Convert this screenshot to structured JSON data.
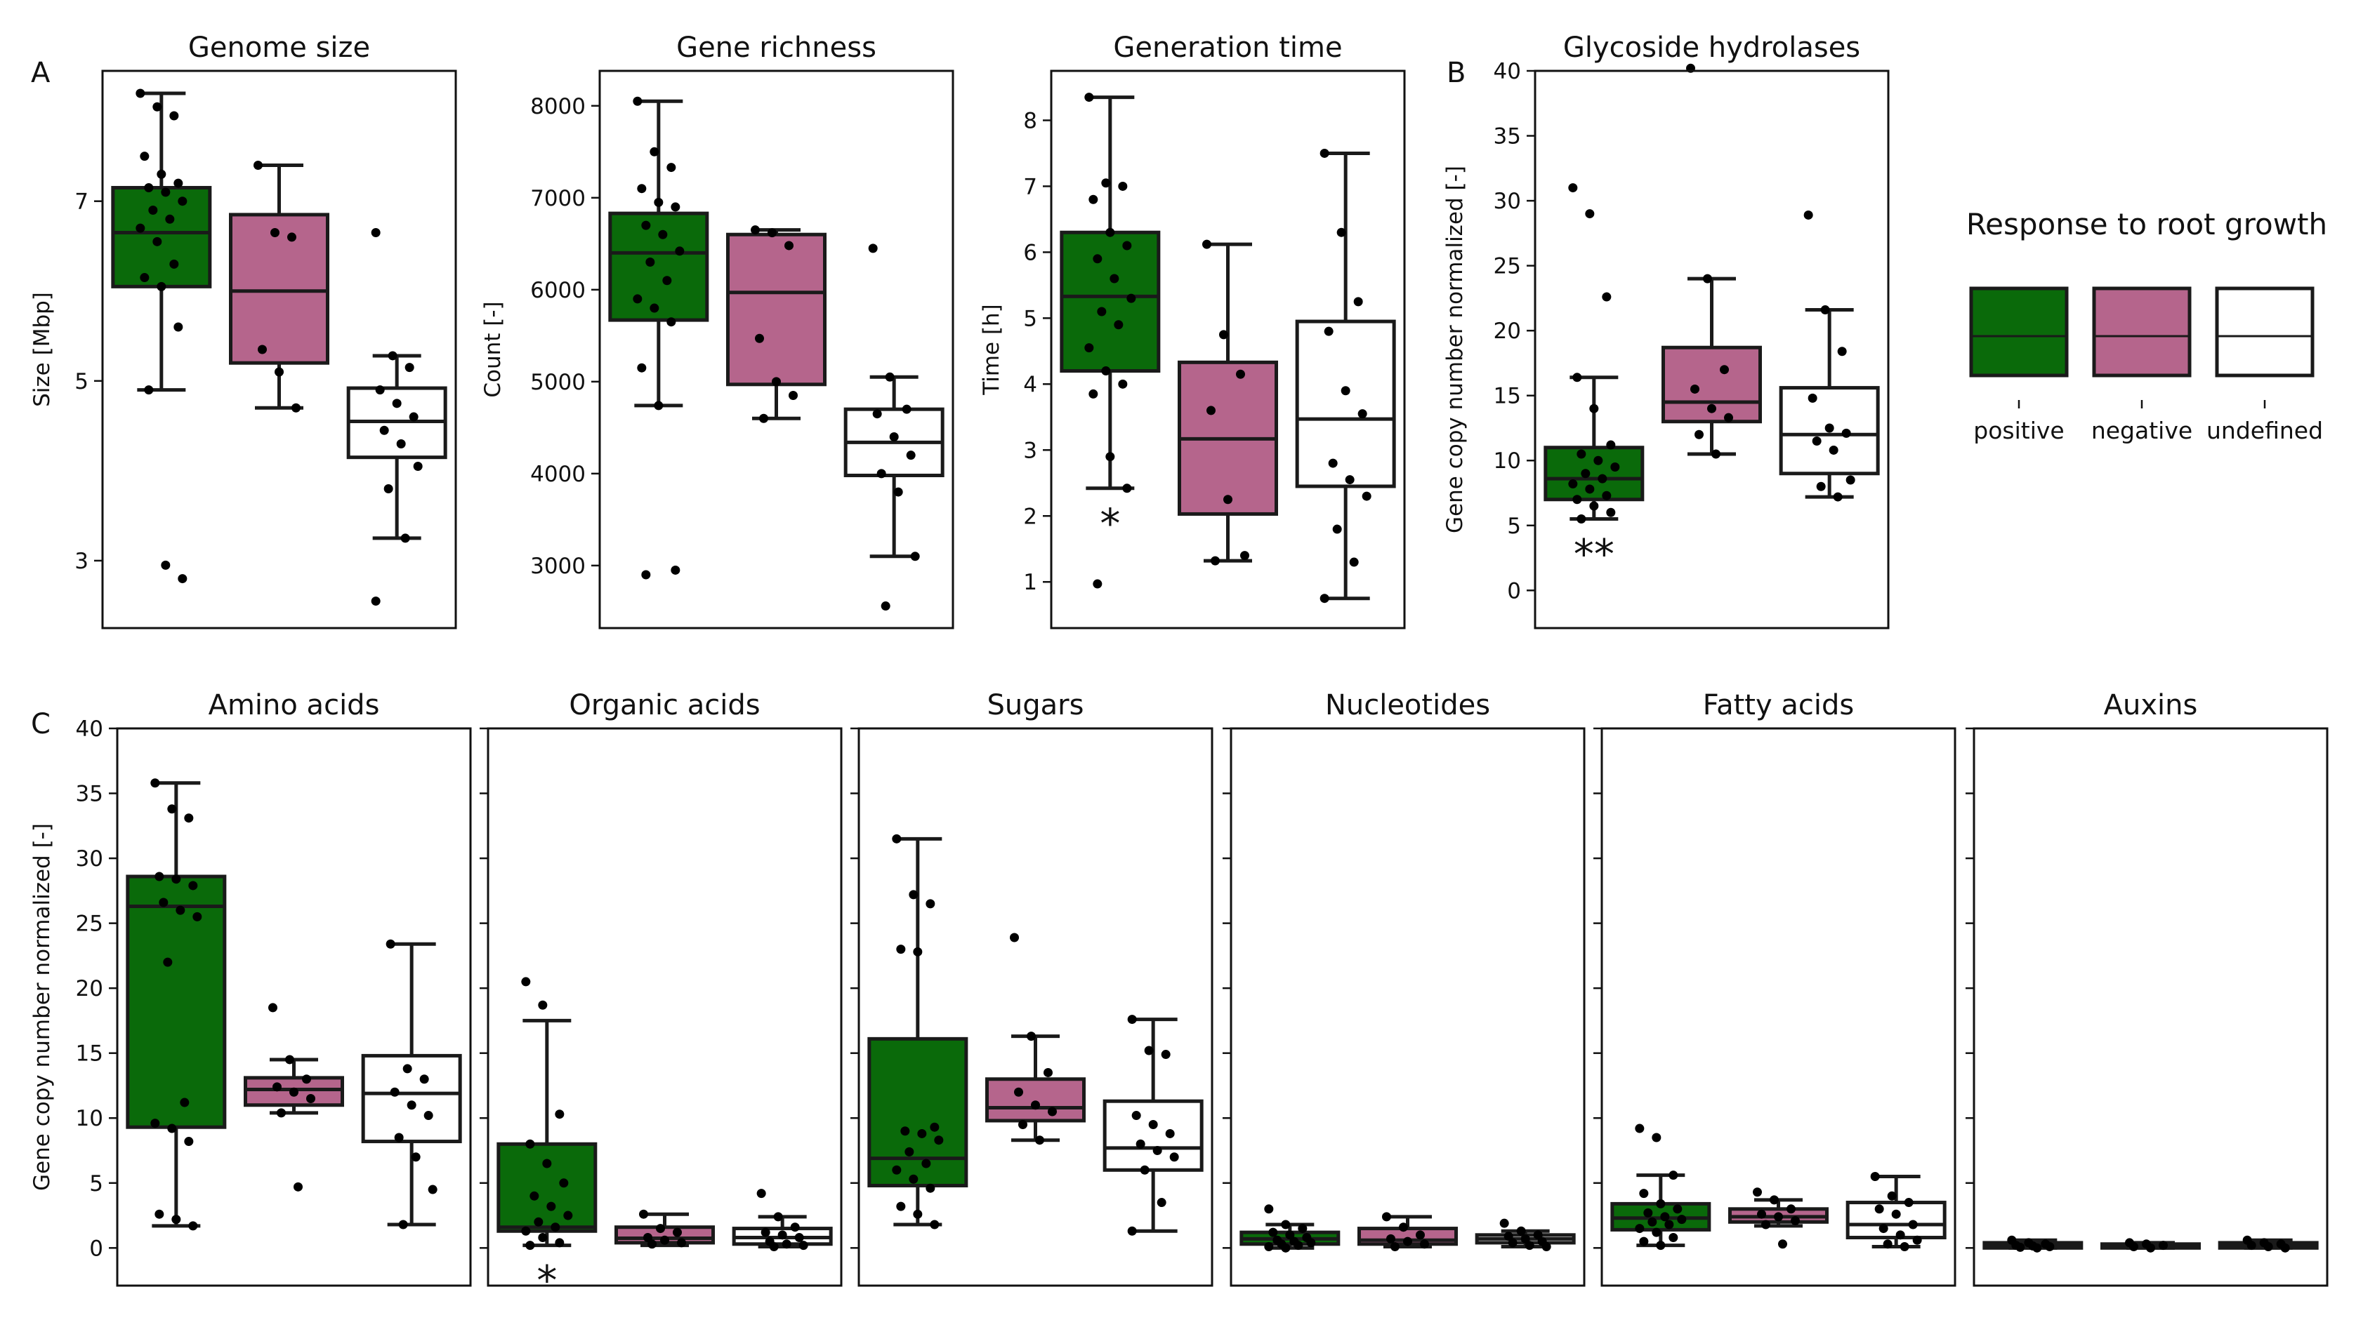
{
  "colors": {
    "positive": "#0a6a0a",
    "negative": "#b5658c",
    "undefined": "#ffffff"
  },
  "legend": {
    "title": "Response to root growth",
    "items": [
      {
        "label": "positive",
        "color_key": "positive"
      },
      {
        "label": "negative",
        "color_key": "negative"
      },
      {
        "label": "undefined",
        "color_key": "undefined"
      }
    ]
  },
  "chart_data": [
    {
      "type": "box",
      "panel_letter": "A",
      "title": "Genome size",
      "xlabel": "",
      "ylabel": "Size [Mbp]",
      "ylim": [
        2.25,
        8.45
      ],
      "yticks": [
        3,
        5,
        7
      ],
      "significance": [],
      "series": [
        {
          "group": "positive",
          "q1": 6.05,
          "median": 6.65,
          "q3": 7.15,
          "whisker_low": 4.9,
          "whisker_high": 8.2,
          "points": [
            8.2,
            8.05,
            7.95,
            7.5,
            7.3,
            7.2,
            7.15,
            7.1,
            7.0,
            6.9,
            6.8,
            6.7,
            6.55,
            6.3,
            6.15,
            6.05,
            5.6,
            4.9,
            2.95,
            2.8
          ]
        },
        {
          "group": "negative",
          "q1": 5.2,
          "median": 6.0,
          "q3": 6.85,
          "whisker_low": 4.7,
          "whisker_high": 7.4,
          "points": [
            7.4,
            6.65,
            6.6,
            5.35,
            5.1,
            4.7
          ]
        },
        {
          "group": "undefined",
          "q1": 4.15,
          "median": 4.55,
          "q3": 4.92,
          "whisker_low": 3.25,
          "whisker_high": 5.28,
          "points": [
            6.65,
            5.28,
            5.15,
            4.9,
            4.75,
            4.6,
            4.45,
            4.3,
            4.05,
            3.8,
            3.25,
            2.55
          ]
        }
      ]
    },
    {
      "type": "box",
      "panel_letter": "",
      "title": "Gene richness",
      "xlabel": "",
      "ylabel": "Count [-]",
      "ylim": [
        2320,
        8380
      ],
      "yticks": [
        3000,
        4000,
        5000,
        6000,
        7000,
        8000
      ],
      "significance": [],
      "series": [
        {
          "group": "positive",
          "q1": 5670,
          "median": 6400,
          "q3": 6830,
          "whisker_low": 4740,
          "whisker_high": 8050,
          "points": [
            8050,
            7500,
            7330,
            7100,
            6950,
            6900,
            6700,
            6600,
            6420,
            6300,
            6100,
            5900,
            5800,
            5650,
            5150,
            4740,
            2950,
            2900
          ]
        },
        {
          "group": "negative",
          "q1": 4970,
          "median": 5970,
          "q3": 6600,
          "whisker_low": 4600,
          "whisker_high": 6650,
          "points": [
            6650,
            6620,
            6480,
            5470,
            5000,
            4850,
            4600
          ]
        },
        {
          "group": "undefined",
          "q1": 3980,
          "median": 4340,
          "q3": 4700,
          "whisker_low": 3100,
          "whisker_high": 5050,
          "points": [
            6450,
            5050,
            4700,
            4650,
            4400,
            4200,
            4000,
            3800,
            3100,
            2560
          ]
        }
      ]
    },
    {
      "type": "box",
      "panel_letter": "",
      "title": "Generation time",
      "xlabel": "",
      "ylabel": "Time [h]",
      "ylim": [
        0.3,
        8.75
      ],
      "yticks": [
        1,
        2,
        3,
        4,
        5,
        6,
        7,
        8
      ],
      "significance": [
        {
          "group": "positive",
          "label": "*"
        }
      ],
      "series": [
        {
          "group": "positive",
          "q1": 4.2,
          "median": 5.33,
          "q3": 6.3,
          "whisker_low": 2.42,
          "whisker_high": 8.35,
          "points": [
            8.35,
            7.05,
            7.0,
            6.8,
            6.3,
            6.1,
            5.9,
            5.6,
            5.3,
            5.1,
            4.9,
            4.55,
            4.2,
            4.0,
            3.85,
            2.9,
            2.42,
            0.97
          ]
        },
        {
          "group": "negative",
          "q1": 2.03,
          "median": 3.17,
          "q3": 4.33,
          "whisker_low": 1.32,
          "whisker_high": 6.12,
          "points": [
            6.12,
            4.75,
            4.15,
            3.6,
            2.25,
            1.4,
            1.32
          ]
        },
        {
          "group": "undefined",
          "q1": 2.45,
          "median": 3.47,
          "q3": 4.95,
          "whisker_low": 0.75,
          "whisker_high": 7.5,
          "points": [
            7.5,
            6.3,
            5.25,
            4.8,
            3.9,
            3.55,
            2.8,
            2.55,
            2.3,
            1.8,
            1.3,
            0.75
          ]
        }
      ]
    },
    {
      "type": "box",
      "panel_letter": "B",
      "title": "Glycoside hydrolases",
      "xlabel": "",
      "ylabel": "Gene copy number normalized [-]",
      "ylim": [
        -2.9,
        40
      ],
      "yticks": [
        0,
        5,
        10,
        15,
        20,
        25,
        30,
        35,
        40
      ],
      "significance": [
        {
          "group": "positive",
          "label": "**"
        }
      ],
      "series": [
        {
          "group": "positive",
          "q1": 7.0,
          "median": 8.6,
          "q3": 11.0,
          "whisker_low": 5.5,
          "whisker_high": 16.4,
          "points": [
            31.0,
            29.0,
            22.6,
            16.4,
            14.0,
            11.2,
            10.5,
            10.0,
            9.5,
            9.0,
            8.6,
            8.2,
            7.8,
            7.3,
            7.0,
            6.5,
            6.0,
            5.5
          ]
        },
        {
          "group": "negative",
          "q1": 13.0,
          "median": 14.5,
          "q3": 18.7,
          "whisker_low": 10.5,
          "whisker_high": 24.0,
          "points": [
            40.2,
            24.0,
            17.0,
            15.5,
            14.0,
            13.3,
            12.0,
            10.5
          ]
        },
        {
          "group": "undefined",
          "q1": 9.0,
          "median": 12.0,
          "q3": 15.6,
          "whisker_low": 7.2,
          "whisker_high": 21.6,
          "points": [
            28.9,
            21.6,
            18.4,
            14.8,
            12.5,
            12.1,
            11.5,
            10.8,
            8.5,
            8.0,
            7.2
          ]
        }
      ]
    },
    {
      "type": "box",
      "panel_letter": "C",
      "title": "Amino acids",
      "xlabel": "",
      "ylabel": "Gene copy number normalized [-]",
      "ylim": [
        -2.9,
        40
      ],
      "yticks": [
        0,
        5,
        10,
        15,
        20,
        25,
        30,
        35,
        40
      ],
      "significance": [],
      "series": [
        {
          "group": "positive",
          "q1": 9.3,
          "median": 26.3,
          "q3": 28.6,
          "whisker_low": 1.7,
          "whisker_high": 35.8,
          "points": [
            35.8,
            33.8,
            33.1,
            28.6,
            28.4,
            27.9,
            26.6,
            26.0,
            25.5,
            22.0,
            11.2,
            9.6,
            9.2,
            8.2,
            2.6,
            2.2,
            1.7
          ]
        },
        {
          "group": "negative",
          "q1": 11.0,
          "median": 12.2,
          "q3": 13.1,
          "whisker_low": 10.4,
          "whisker_high": 14.5,
          "points": [
            18.5,
            14.5,
            13.0,
            12.4,
            12.0,
            11.5,
            10.4,
            4.7
          ]
        },
        {
          "group": "undefined",
          "q1": 8.2,
          "median": 11.9,
          "q3": 14.8,
          "whisker_low": 1.8,
          "whisker_high": 23.4,
          "points": [
            23.4,
            13.8,
            13.0,
            12.0,
            11.0,
            10.2,
            8.5,
            7.0,
            4.5,
            1.8
          ]
        }
      ]
    },
    {
      "type": "box",
      "panel_letter": "",
      "title": "Organic acids",
      "xlabel": "",
      "ylabel": "",
      "ylim": [
        -2.9,
        40
      ],
      "yticks": [
        0,
        5,
        10,
        15,
        20,
        25,
        30,
        35,
        40
      ],
      "significance": [
        {
          "group": "positive",
          "label": "*"
        }
      ],
      "series": [
        {
          "group": "positive",
          "q1": 1.3,
          "median": 1.6,
          "q3": 8.0,
          "whisker_low": 0.2,
          "whisker_high": 17.5,
          "points": [
            20.5,
            18.7,
            10.3,
            8.0,
            6.5,
            5.0,
            4.0,
            3.2,
            2.5,
            2.0,
            1.6,
            1.3,
            0.8,
            0.4,
            0.2
          ]
        },
        {
          "group": "negative",
          "q1": 0.4,
          "median": 0.75,
          "q3": 1.6,
          "whisker_low": 0.2,
          "whisker_high": 2.6,
          "points": [
            2.6,
            1.5,
            1.2,
            0.8,
            0.6,
            0.4,
            0.3
          ]
        },
        {
          "group": "undefined",
          "q1": 0.3,
          "median": 0.8,
          "q3": 1.5,
          "whisker_low": 0.1,
          "whisker_high": 2.4,
          "points": [
            4.2,
            2.4,
            1.6,
            1.2,
            1.0,
            0.8,
            0.5,
            0.3,
            0.2,
            0.1
          ]
        }
      ]
    },
    {
      "type": "box",
      "panel_letter": "",
      "title": "Sugars",
      "xlabel": "",
      "ylabel": "",
      "ylim": [
        -2.9,
        40
      ],
      "yticks": [
        0,
        5,
        10,
        15,
        20,
        25,
        30,
        35,
        40
      ],
      "significance": [],
      "series": [
        {
          "group": "positive",
          "q1": 4.8,
          "median": 6.9,
          "q3": 16.1,
          "whisker_low": 1.8,
          "whisker_high": 31.5,
          "points": [
            31.5,
            27.2,
            26.5,
            23.0,
            22.8,
            9.3,
            9.0,
            8.8,
            8.3,
            7.4,
            6.5,
            6.0,
            5.3,
            4.6,
            3.2,
            2.6,
            1.8
          ]
        },
        {
          "group": "negative",
          "q1": 9.8,
          "median": 10.8,
          "q3": 13.0,
          "whisker_low": 8.3,
          "whisker_high": 16.3,
          "points": [
            23.9,
            16.3,
            13.5,
            12.0,
            11.0,
            10.5,
            9.5,
            8.3
          ]
        },
        {
          "group": "undefined",
          "q1": 6.0,
          "median": 7.7,
          "q3": 11.3,
          "whisker_low": 1.3,
          "whisker_high": 17.6,
          "points": [
            17.6,
            15.2,
            14.9,
            10.2,
            9.5,
            8.8,
            8.0,
            7.5,
            7.0,
            6.0,
            3.5,
            1.3
          ]
        }
      ]
    },
    {
      "type": "box",
      "panel_letter": "",
      "title": "Nucleotides",
      "xlabel": "",
      "ylabel": "",
      "ylim": [
        -2.9,
        40
      ],
      "yticks": [
        0,
        5,
        10,
        15,
        20,
        25,
        30,
        35,
        40
      ],
      "significance": [],
      "series": [
        {
          "group": "positive",
          "q1": 0.3,
          "median": 0.7,
          "q3": 1.2,
          "whisker_low": 0.0,
          "whisker_high": 1.8,
          "points": [
            3.0,
            1.8,
            1.5,
            1.2,
            1.0,
            0.8,
            0.6,
            0.5,
            0.4,
            0.3,
            0.2,
            0.1,
            0.0
          ]
        },
        {
          "group": "negative",
          "q1": 0.3,
          "median": 0.6,
          "q3": 1.5,
          "whisker_low": 0.1,
          "whisker_high": 2.4,
          "points": [
            2.4,
            1.6,
            1.0,
            0.7,
            0.5,
            0.3,
            0.1
          ]
        },
        {
          "group": "undefined",
          "q1": 0.4,
          "median": 0.7,
          "q3": 1.0,
          "whisker_low": 0.1,
          "whisker_high": 1.3,
          "points": [
            1.9,
            1.3,
            1.0,
            0.9,
            0.7,
            0.5,
            0.4,
            0.2,
            0.1
          ]
        }
      ]
    },
    {
      "type": "box",
      "panel_letter": "",
      "title": "Fatty acids",
      "xlabel": "",
      "ylabel": "",
      "ylim": [
        -2.9,
        40
      ],
      "yticks": [
        0,
        5,
        10,
        15,
        20,
        25,
        30,
        35,
        40
      ],
      "significance": [],
      "series": [
        {
          "group": "positive",
          "q1": 1.4,
          "median": 2.3,
          "q3": 3.4,
          "whisker_low": 0.2,
          "whisker_high": 5.6,
          "points": [
            9.2,
            8.5,
            5.6,
            4.2,
            3.4,
            3.0,
            2.7,
            2.4,
            2.2,
            2.0,
            1.8,
            1.5,
            1.2,
            0.8,
            0.5,
            0.2
          ]
        },
        {
          "group": "negative",
          "q1": 2.0,
          "median": 2.4,
          "q3": 3.0,
          "whisker_low": 1.7,
          "whisker_high": 3.7,
          "points": [
            4.3,
            3.7,
            3.0,
            2.6,
            2.4,
            2.1,
            1.8,
            0.3
          ]
        },
        {
          "group": "undefined",
          "q1": 0.8,
          "median": 1.8,
          "q3": 3.5,
          "whisker_low": 0.1,
          "whisker_high": 5.5,
          "points": [
            5.5,
            4.0,
            3.5,
            3.0,
            2.6,
            1.8,
            1.5,
            1.0,
            0.6,
            0.3,
            0.1
          ]
        }
      ]
    },
    {
      "type": "box",
      "panel_letter": "",
      "title": "Auxins",
      "xlabel": "",
      "ylabel": "",
      "ylim": [
        -2.9,
        40
      ],
      "yticks": [
        0,
        5,
        10,
        15,
        20,
        25,
        30,
        35,
        40
      ],
      "significance": [],
      "series": [
        {
          "group": "positive",
          "q1": 0.0,
          "median": 0.15,
          "q3": 0.4,
          "whisker_low": 0.0,
          "whisker_high": 0.6,
          "points": [
            0.6,
            0.4,
            0.3,
            0.2,
            0.15,
            0.1,
            0.05,
            0.0
          ]
        },
        {
          "group": "negative",
          "q1": 0.0,
          "median": 0.1,
          "q3": 0.3,
          "whisker_low": 0.0,
          "whisker_high": 0.4,
          "points": [
            0.4,
            0.3,
            0.2,
            0.1,
            0.0
          ]
        },
        {
          "group": "undefined",
          "q1": 0.0,
          "median": 0.15,
          "q3": 0.4,
          "whisker_low": 0.0,
          "whisker_high": 0.6,
          "points": [
            0.6,
            0.4,
            0.3,
            0.2,
            0.1,
            0.0
          ]
        }
      ]
    }
  ]
}
